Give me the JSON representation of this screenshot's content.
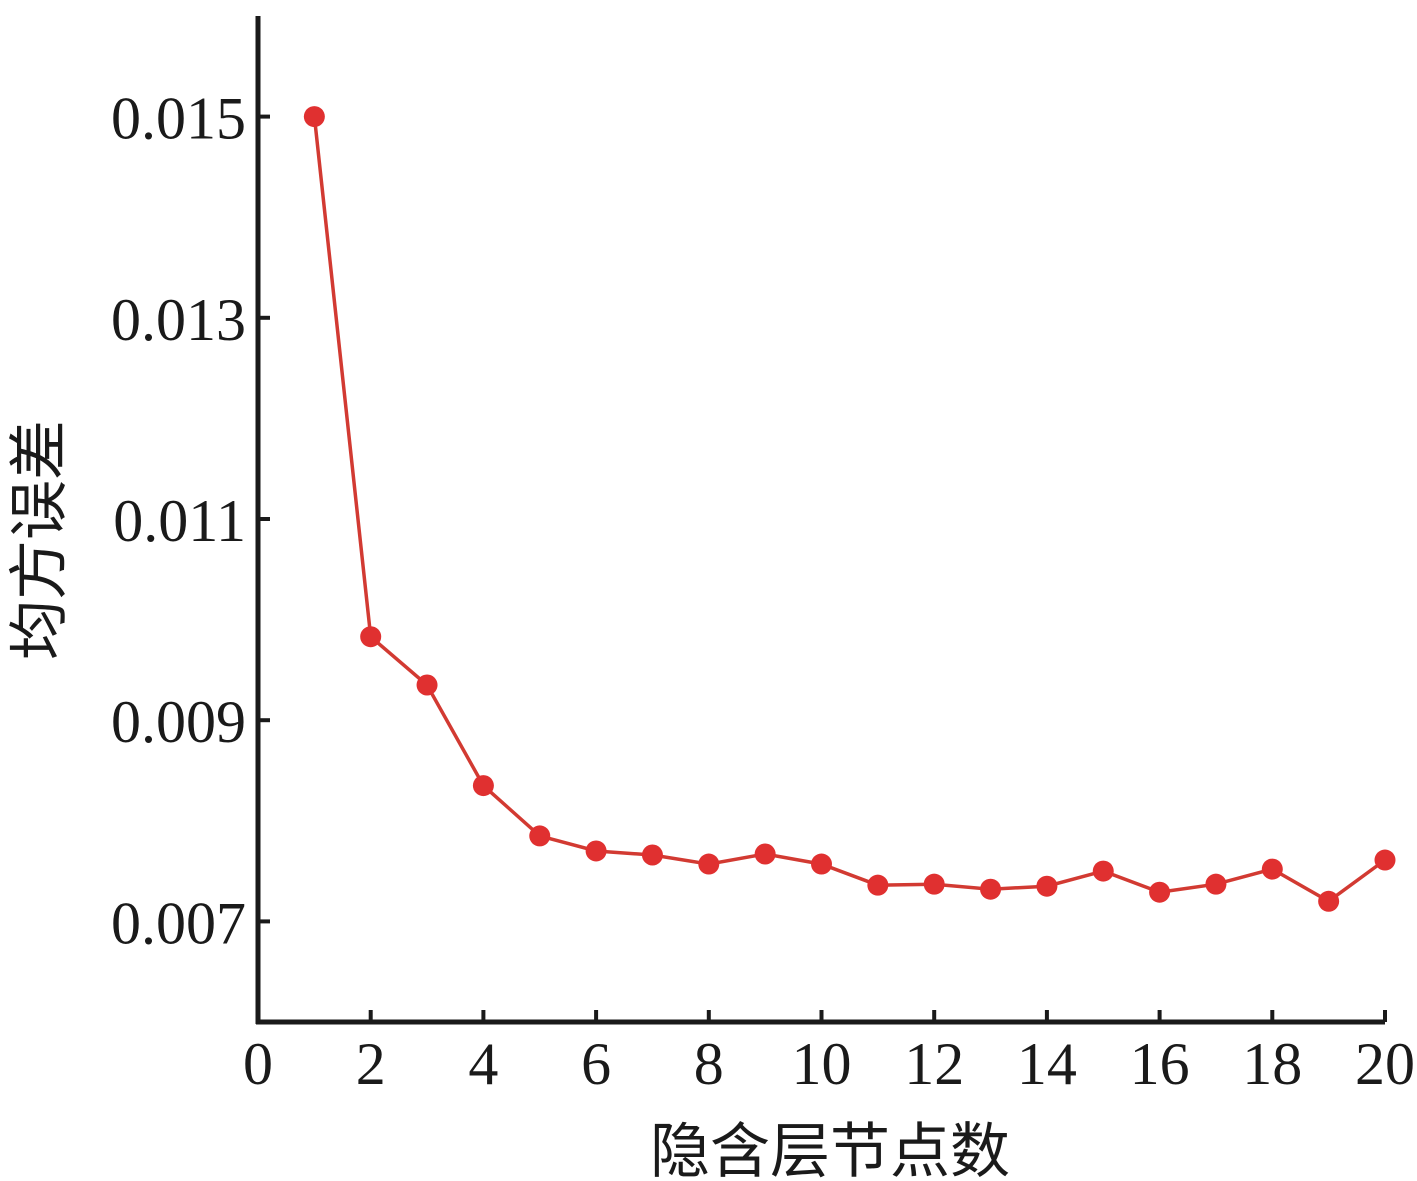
{
  "chart_data": {
    "type": "line",
    "title": "",
    "xlabel": "隐含层节点数",
    "ylabel": "均方误差",
    "xlim": [
      0,
      20
    ],
    "ylim": [
      0.006,
      0.016
    ],
    "xticks": [
      0,
      2,
      4,
      6,
      8,
      10,
      12,
      14,
      16,
      18,
      20
    ],
    "xtick_labels": [
      "0",
      "2",
      "4",
      "6",
      "8",
      "10",
      "12",
      "14",
      "16",
      "18",
      "20"
    ],
    "yticks": [
      0.007,
      0.009,
      0.011,
      0.013,
      0.015
    ],
    "ytick_labels": [
      "0.007",
      "0.009",
      "0.011",
      "0.013",
      "0.015"
    ],
    "grid": false,
    "legend": "none",
    "series": [
      {
        "color": "#e03030",
        "x": [
          1,
          2,
          3,
          4,
          5,
          6,
          7,
          8,
          9,
          10,
          11,
          12,
          13,
          14,
          15,
          16,
          17,
          18,
          19,
          20
        ],
        "y": [
          0.015,
          0.00983,
          0.00935,
          0.00835,
          0.00785,
          0.0077,
          0.00766,
          0.00757,
          0.00767,
          0.00757,
          0.00736,
          0.00737,
          0.00732,
          0.00735,
          0.0075,
          0.00729,
          0.00737,
          0.00752,
          0.0072,
          0.00761
        ]
      }
    ]
  }
}
